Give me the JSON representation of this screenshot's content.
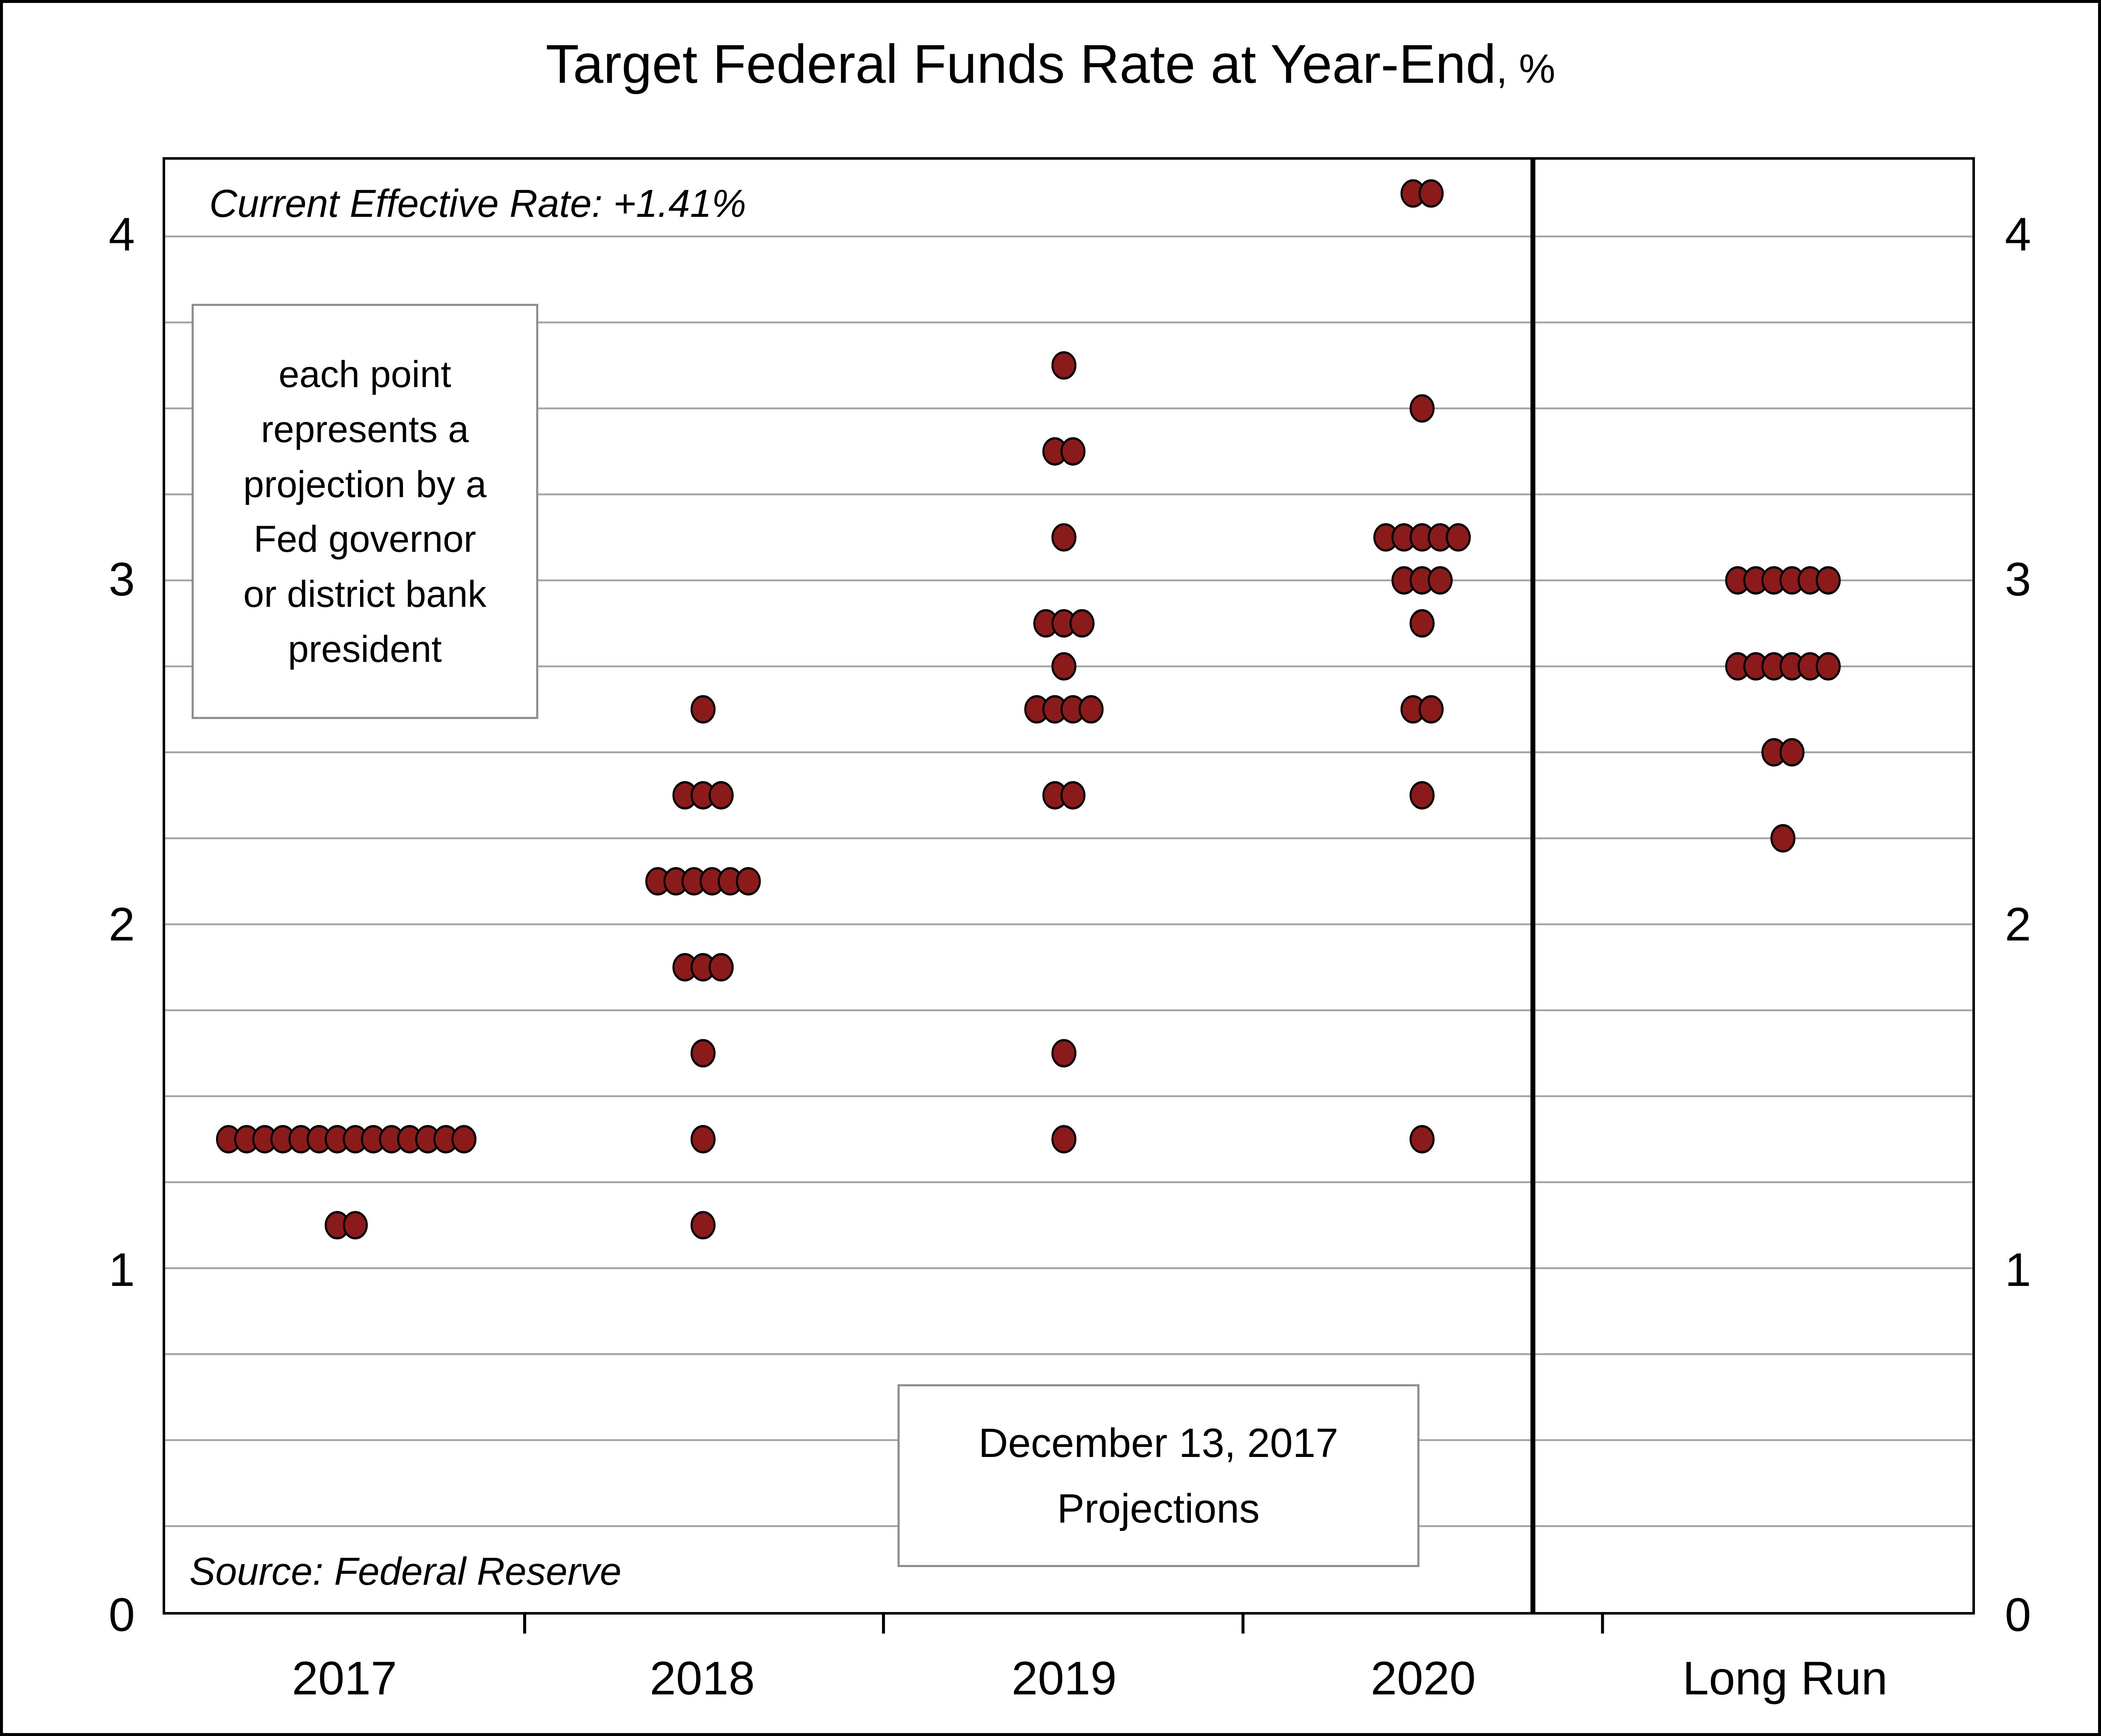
{
  "chart_data": {
    "type": "scatter",
    "title_main": "Target Federal Funds Rate at Year-End",
    "title_suffix": ", %",
    "categories": [
      "2017",
      "2018",
      "2019",
      "2020",
      "Long Run"
    ],
    "y_ticks": [
      0,
      1,
      2,
      3,
      4
    ],
    "ylim": [
      0,
      4.22
    ],
    "grid_step": 0.25,
    "grid_on": true,
    "dot_color": "#8B1B1B",
    "dot_outline": "#000000",
    "grid_color": "#a3a3a3",
    "series": [
      {
        "category": "2017",
        "points": [
          {
            "rate": 1.125,
            "count": 2
          },
          {
            "rate": 1.375,
            "count": 14
          }
        ]
      },
      {
        "category": "2018",
        "points": [
          {
            "rate": 1.125,
            "count": 1
          },
          {
            "rate": 1.375,
            "count": 1
          },
          {
            "rate": 1.625,
            "count": 1
          },
          {
            "rate": 1.875,
            "count": 3
          },
          {
            "rate": 2.125,
            "count": 6
          },
          {
            "rate": 2.375,
            "count": 3
          },
          {
            "rate": 2.625,
            "count": 1
          }
        ]
      },
      {
        "category": "2019",
        "points": [
          {
            "rate": 1.375,
            "count": 1
          },
          {
            "rate": 1.625,
            "count": 1
          },
          {
            "rate": 2.375,
            "count": 2
          },
          {
            "rate": 2.625,
            "count": 4
          },
          {
            "rate": 2.75,
            "count": 1
          },
          {
            "rate": 2.875,
            "count": 3
          },
          {
            "rate": 3.125,
            "count": 1
          },
          {
            "rate": 3.375,
            "count": 2
          },
          {
            "rate": 3.625,
            "count": 1
          }
        ]
      },
      {
        "category": "2020",
        "points": [
          {
            "rate": 1.375,
            "count": 1
          },
          {
            "rate": 2.375,
            "count": 1
          },
          {
            "rate": 2.625,
            "count": 2
          },
          {
            "rate": 2.875,
            "count": 1
          },
          {
            "rate": 3.0,
            "count": 3
          },
          {
            "rate": 3.125,
            "count": 5
          },
          {
            "rate": 3.5,
            "count": 1
          },
          {
            "rate": 4.125,
            "count": 2
          }
        ]
      },
      {
        "category": "Long Run",
        "points": [
          {
            "rate": 2.25,
            "count": 1
          },
          {
            "rate": 2.5,
            "count": 2
          },
          {
            "rate": 2.75,
            "count": 6
          },
          {
            "rate": 3.0,
            "count": 6
          }
        ]
      }
    ],
    "annotations": {
      "current_rate": "Current Effective Rate: +1.41%",
      "legend_note": "each point\nrepresents a\nprojection by a\nFed governor\nor district bank\npresident",
      "projection_date": "December 13, 2017\nProjections",
      "source": "Source: Federal Reserve"
    }
  }
}
